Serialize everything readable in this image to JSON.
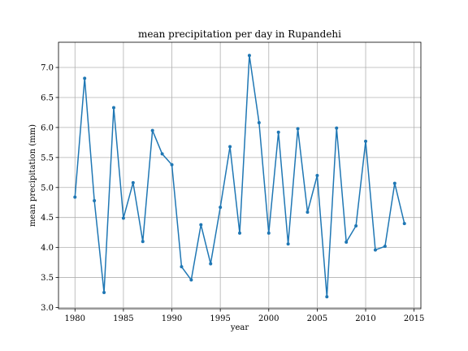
{
  "chart_data": {
    "type": "line",
    "title": "mean precipitation per day in Rupandehi",
    "xlabel": "year",
    "ylabel": "mean precipitation (mm)",
    "xlim": [
      1978.3,
      2015.7
    ],
    "ylim": [
      2.98,
      7.42
    ],
    "xticks": [
      1980,
      1985,
      1990,
      1995,
      2000,
      2005,
      2010,
      2015
    ],
    "yticks": [
      3.0,
      3.5,
      4.0,
      4.5,
      5.0,
      5.5,
      6.0,
      6.5,
      7.0
    ],
    "grid": true,
    "marker": "point",
    "color": "#1f77b4",
    "x": [
      1980,
      1981,
      1982,
      1983,
      1984,
      1985,
      1986,
      1987,
      1988,
      1989,
      1990,
      1991,
      1992,
      1993,
      1994,
      1995,
      1996,
      1997,
      1998,
      1999,
      2000,
      2001,
      2002,
      2003,
      2004,
      2005,
      2006,
      2007,
      2008,
      2009,
      2010,
      2011,
      2012,
      2013,
      2014
    ],
    "y": [
      4.84,
      6.82,
      4.78,
      3.25,
      6.33,
      4.49,
      5.08,
      4.1,
      5.95,
      5.56,
      5.38,
      3.68,
      3.46,
      4.38,
      3.73,
      4.67,
      5.68,
      4.24,
      7.2,
      6.08,
      4.24,
      5.92,
      4.06,
      5.98,
      4.59,
      5.2,
      3.18,
      5.99,
      4.09,
      4.36,
      5.77,
      3.96,
      4.02,
      5.07,
      4.4
    ]
  }
}
